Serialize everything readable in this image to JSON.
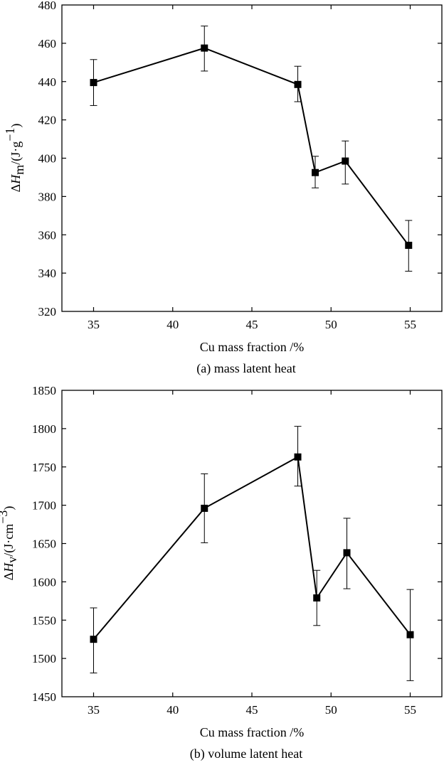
{
  "chart_data": [
    {
      "type": "line",
      "title": "(a) mass latent heat",
      "xlabel": "Cu mass fraction /%",
      "ylabel": {
        "delta": "Δ",
        "symbol": "H",
        "subscript": "m",
        "unit_open": "/(J·g",
        "unit_exp": "−1",
        "unit_close": ")"
      },
      "xlim": [
        33,
        57
      ],
      "ylim": [
        320,
        480
      ],
      "xticks": [
        35,
        40,
        45,
        50,
        55
      ],
      "yticks": [
        320,
        340,
        360,
        380,
        400,
        420,
        440,
        460,
        480
      ],
      "x": [
        35,
        42,
        47.9,
        49,
        50.9,
        54.9
      ],
      "y": [
        439.5,
        457.5,
        438.5,
        392.5,
        398.5,
        354.5
      ],
      "err_low": [
        427.5,
        445.5,
        429.5,
        384.5,
        386.5,
        341
      ],
      "err_high": [
        451.5,
        469,
        448,
        401,
        409,
        367.5
      ],
      "grid": false
    },
    {
      "type": "line",
      "title": "(b) volume latent heat",
      "xlabel": "Cu mass fraction /%",
      "ylabel": {
        "delta": "Δ",
        "symbol": "H",
        "subscript": "v",
        "unit_open": "/(J·cm",
        "unit_exp": "−3",
        "unit_close": ")"
      },
      "xlim": [
        33,
        57
      ],
      "ylim": [
        1450,
        1850
      ],
      "xticks": [
        35,
        40,
        45,
        50,
        55
      ],
      "yticks": [
        1450,
        1500,
        1550,
        1600,
        1650,
        1700,
        1750,
        1800,
        1850
      ],
      "x": [
        35,
        42,
        47.9,
        49.1,
        51,
        55
      ],
      "y": [
        1525,
        1696,
        1763,
        1579,
        1638,
        1531
      ],
      "err_low": [
        1481,
        1651,
        1725,
        1543,
        1591,
        1471
      ],
      "err_high": [
        1566,
        1741,
        1803,
        1615,
        1683,
        1590
      ],
      "grid": false
    }
  ]
}
